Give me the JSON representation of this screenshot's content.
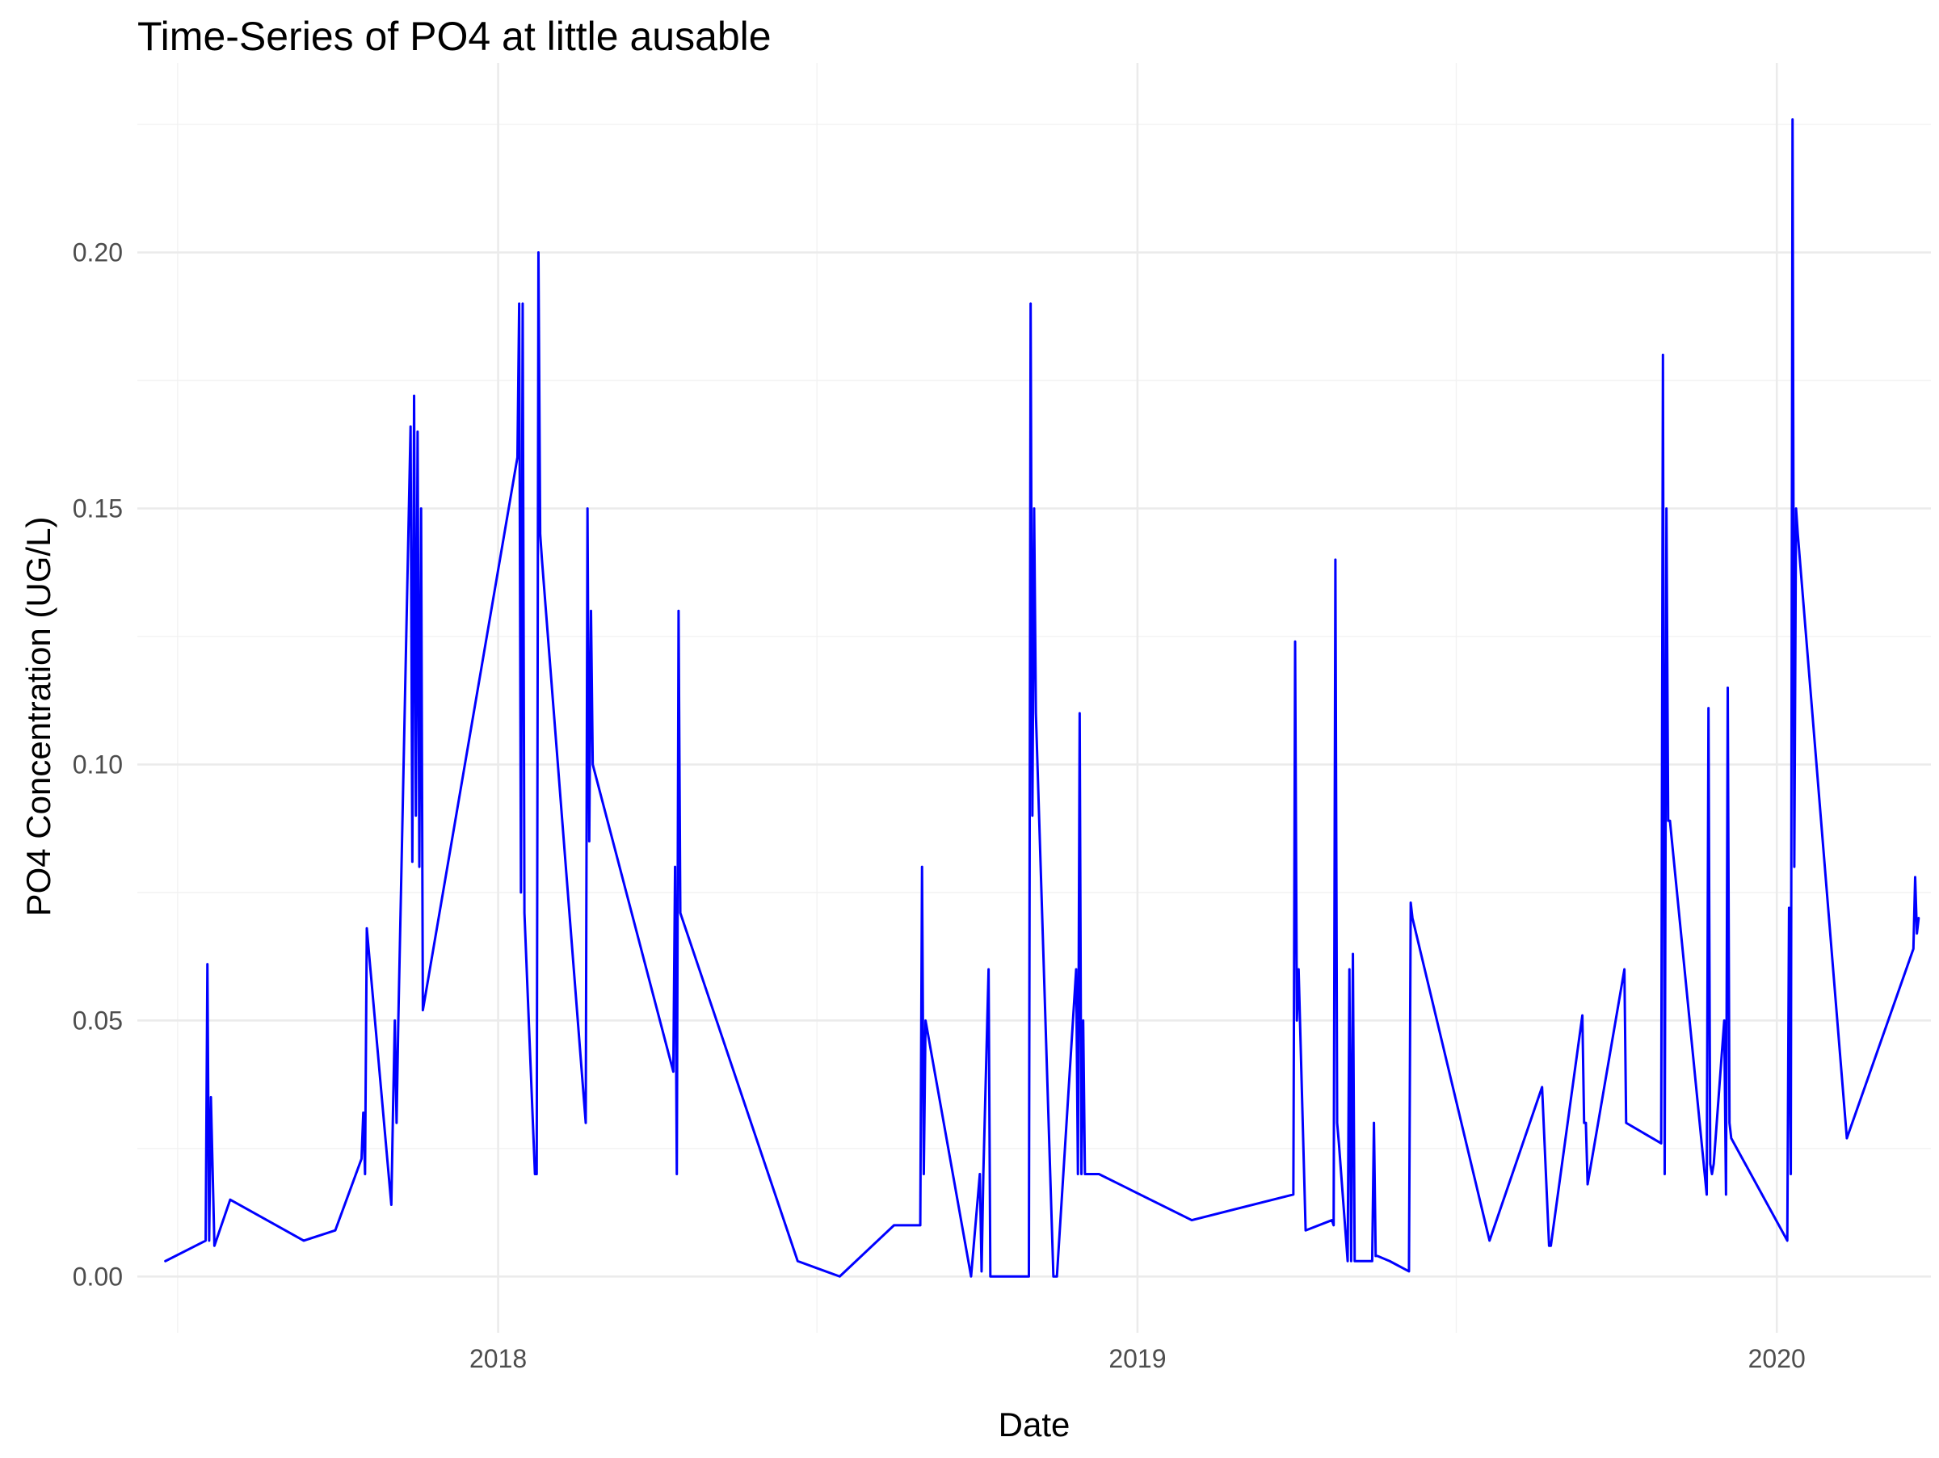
{
  "chart_data": {
    "type": "line",
    "title": "Time-Series of PO4 at little ausable",
    "xlabel": "Date",
    "ylabel": "PO4 Concentration (UG/L)",
    "x_ticks": [
      "2018",
      "2019",
      "2020"
    ],
    "y_ticks": [
      "0.00",
      "0.05",
      "0.10",
      "0.15",
      "0.20"
    ],
    "xlim": [
      "2017-06-09",
      "2020-03-29"
    ],
    "ylim": [
      -0.011,
      0.237
    ],
    "grid": true,
    "legend": "none",
    "colors": {
      "line": "#0000ff",
      "grid_major": "#ebebeb",
      "grid_minor": "#f2f2f2"
    },
    "series": [
      {
        "x": [
          "2017-06-25",
          "2017-07-18",
          "2017-07-19",
          "2017-07-20",
          "2017-07-21",
          "2017-07-23",
          "2017-08-01",
          "2017-09-12",
          "2017-09-30",
          "2017-10-15",
          "2017-10-16",
          "2017-10-17",
          "2017-10-18",
          "2017-11-01",
          "2017-11-02",
          "2017-11-03",
          "2017-11-04",
          "2017-11-05",
          "2017-11-12",
          "2017-11-13",
          "2017-11-14",
          "2017-11-15",
          "2017-11-16",
          "2017-11-17",
          "2017-11-18",
          "2017-11-19",
          "2018-01-12",
          "2018-01-13",
          "2018-01-14",
          "2018-01-15",
          "2018-01-16",
          "2018-01-22",
          "2018-01-23",
          "2018-01-24",
          "2018-01-25",
          "2018-01-26",
          "2018-02-20",
          "2018-02-21",
          "2018-02-22",
          "2018-02-23",
          "2018-02-24",
          "2018-04-11",
          "2018-04-12",
          "2018-04-13",
          "2018-04-14",
          "2018-04-15",
          "2018-06-21",
          "2018-07-15",
          "2018-08-15",
          "2018-08-30",
          "2018-08-31",
          "2018-09-01",
          "2018-09-02",
          "2018-09-28",
          "2018-10-03",
          "2018-10-04",
          "2018-10-05",
          "2018-10-08",
          "2018-10-09",
          "2018-10-10",
          "2018-10-31",
          "2018-11-01",
          "2018-11-02",
          "2018-11-03",
          "2018-11-04",
          "2018-11-14",
          "2018-11-15",
          "2018-11-16",
          "2018-11-27",
          "2018-11-28",
          "2018-11-29",
          "2018-11-30",
          "2018-12-01",
          "2018-12-02",
          "2018-12-10",
          "2019-02-01",
          "2019-03-31",
          "2019-04-01",
          "2019-04-02",
          "2019-04-03",
          "2019-04-07",
          "2019-04-22",
          "2019-04-23",
          "2019-04-24",
          "2019-04-25",
          "2019-04-26",
          "2019-05-01",
          "2019-05-02",
          "2019-05-03",
          "2019-05-04",
          "2019-05-05",
          "2019-05-06",
          "2019-05-14",
          "2019-05-15",
          "2019-05-16",
          "2019-05-17",
          "2019-05-18",
          "2019-05-25",
          "2019-06-05",
          "2019-06-06",
          "2019-06-07",
          "2019-07-21",
          "2019-08-20",
          "2019-08-24",
          "2019-08-25",
          "2019-09-12",
          "2019-09-13",
          "2019-09-14",
          "2019-09-15",
          "2019-10-06",
          "2019-10-07",
          "2019-10-27",
          "2019-10-28",
          "2019-10-29",
          "2019-10-30",
          "2019-10-31",
          "2019-11-01",
          "2019-11-22",
          "2019-11-23",
          "2019-11-24",
          "2019-11-25",
          "2019-11-26",
          "2019-12-02",
          "2019-12-03",
          "2019-12-04",
          "2019-12-05",
          "2019-12-06",
          "2020-01-07",
          "2020-01-08",
          "2020-01-09",
          "2020-01-10",
          "2020-01-11",
          "2020-01-12",
          "2020-01-13",
          "2020-02-10",
          "2020-03-19",
          "2020-03-20",
          "2020-03-21",
          "2020-03-22"
        ],
        "y": [
          0.003,
          0.007,
          0.061,
          0.007,
          0.035,
          0.006,
          0.015,
          0.007,
          0.009,
          0.023,
          0.032,
          0.02,
          0.068,
          0.014,
          0.033,
          0.05,
          0.03,
          0.05,
          0.166,
          0.081,
          0.172,
          0.09,
          0.165,
          0.08,
          0.15,
          0.052,
          0.16,
          0.19,
          0.075,
          0.19,
          0.071,
          0.02,
          0.02,
          0.2,
          0.145,
          0.14,
          0.03,
          0.15,
          0.085,
          0.13,
          0.1,
          0.04,
          0.08,
          0.02,
          0.13,
          0.071,
          0.003,
          0.0,
          0.01,
          0.01,
          0.08,
          0.02,
          0.05,
          0.0,
          0.02,
          0.001,
          0.02,
          0.06,
          0.0,
          0.0,
          0.0,
          0.19,
          0.09,
          0.15,
          0.11,
          0.0,
          0.0,
          0.0,
          0.06,
          0.02,
          0.11,
          0.02,
          0.05,
          0.02,
          0.02,
          0.011,
          0.016,
          0.124,
          0.05,
          0.06,
          0.009,
          0.011,
          0.01,
          0.14,
          0.03,
          0.026,
          0.003,
          0.06,
          0.003,
          0.063,
          0.003,
          0.003,
          0.003,
          0.003,
          0.03,
          0.004,
          0.004,
          0.003,
          0.001,
          0.073,
          0.07,
          0.007,
          0.037,
          0.006,
          0.006,
          0.051,
          0.03,
          0.03,
          0.018,
          0.06,
          0.03,
          0.026,
          0.18,
          0.02,
          0.15,
          0.089,
          0.089,
          0.016,
          0.111,
          0.022,
          0.02,
          0.022,
          0.05,
          0.016,
          0.115,
          0.03,
          0.027,
          0.007,
          0.072,
          0.02,
          0.226,
          0.08,
          0.15,
          0.145,
          0.027,
          0.064,
          0.078,
          0.067,
          0.07
        ]
      }
    ]
  }
}
